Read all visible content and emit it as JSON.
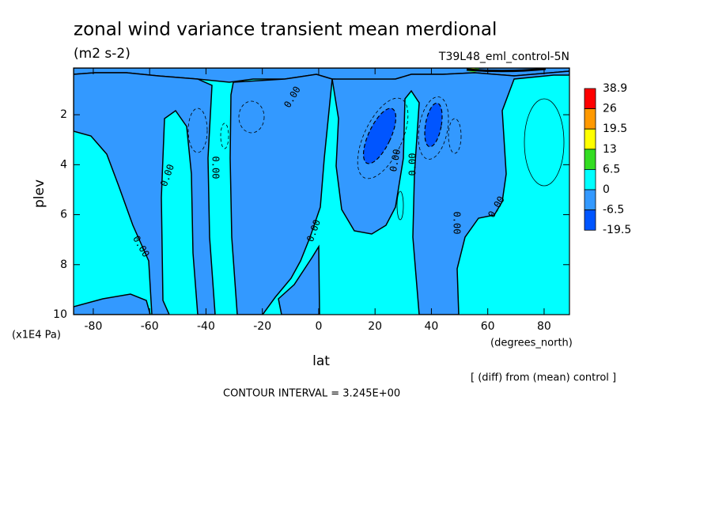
{
  "chart_data": {
    "type": "contour",
    "title": "zonal wind variance transient mean merdional",
    "subtitle": "(m2 s-2)",
    "dataset": "T39L48_eml_control-5N",
    "x_label": "lat",
    "x_units": "(degrees_north)",
    "y_label": "plev",
    "y_units": "(x1E4 Pa)",
    "footnote": "[ (diff) from (mean) control ]",
    "contour_interval": "CONTOUR INTERVAL = 3.245E+00",
    "xlim": [
      -87,
      89
    ],
    "xticks": [
      -80,
      -60,
      -40,
      -20,
      0,
      20,
      40,
      60,
      80
    ],
    "ylim": [
      0.13,
      10
    ],
    "y_inverted": true,
    "yticks": [
      2,
      4,
      6,
      8,
      10
    ],
    "levels": [
      38.9,
      26,
      19.5,
      13,
      6.5,
      0,
      -6.5,
      -19.5
    ],
    "level_colors": [
      "#ff0000",
      "#ff9900",
      "#ffff00",
      "#33dd22",
      "#00ffff",
      "#3399ff",
      "#0055ff"
    ],
    "contour_labels": [
      {
        "value": 0,
        "label": "0.00"
      }
    ]
  }
}
